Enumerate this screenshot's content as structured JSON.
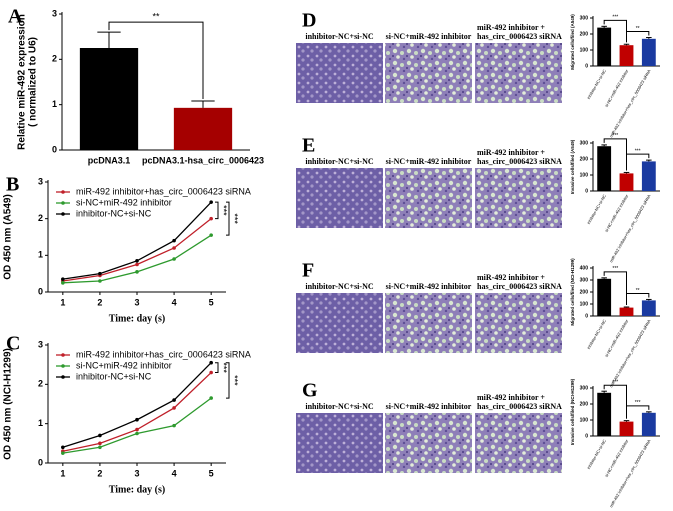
{
  "chart_data": [
    {
      "type": "bar",
      "panel": "A",
      "ylabel": [
        "Relative miR-492 expression",
        "( normalized to U6)"
      ],
      "categories": [
        "pcDNA3.1",
        "pcDNA3.1-hsa_circ_0006423"
      ],
      "values": [
        2.25,
        0.93
      ],
      "errors": [
        0.35,
        0.15
      ],
      "colors": [
        "#000000",
        "#a50000"
      ],
      "ylim": [
        0,
        3
      ],
      "yticks": [
        0,
        1,
        2,
        3
      ],
      "annotations": [
        "**"
      ]
    },
    {
      "type": "line",
      "panel": "B",
      "ylabel": [
        "OD 450 nm (A549)"
      ],
      "xlabel": "Time: day (s)",
      "x": [
        1,
        2,
        3,
        4,
        5
      ],
      "xlim": [
        0.6,
        5.4
      ],
      "xticks": [
        1,
        2,
        3,
        4,
        5
      ],
      "ylim": [
        0,
        3
      ],
      "yticks": [
        0,
        1,
        2,
        3
      ],
      "series": [
        {
          "name": "miR-492 inhibitor+has_circ_0006423 siRNA",
          "color": "#c0202a",
          "values": [
            0.3,
            0.45,
            0.75,
            1.2,
            2.0
          ]
        },
        {
          "name": "si-NC+miR-492 inhibitor",
          "color": "#2e9a2e",
          "values": [
            0.25,
            0.3,
            0.55,
            0.9,
            1.55
          ]
        },
        {
          "name": "inhibitor-NC+si-NC",
          "color": "#000000",
          "values": [
            0.35,
            0.5,
            0.85,
            1.4,
            2.45
          ]
        }
      ],
      "annotations": [
        "***",
        "***"
      ]
    },
    {
      "type": "line",
      "panel": "C",
      "ylabel": [
        "OD 450 nm (NCI-H1299)"
      ],
      "xlabel": "Time: day (s)",
      "x": [
        1,
        2,
        3,
        4,
        5
      ],
      "xlim": [
        0.6,
        5.4
      ],
      "xticks": [
        1,
        2,
        3,
        4,
        5
      ],
      "ylim": [
        0,
        3
      ],
      "yticks": [
        0,
        1,
        2,
        3
      ],
      "series": [
        {
          "name": "miR-492 inhibitor+has_circ_0006423 siRNA",
          "color": "#c0202a",
          "values": [
            0.3,
            0.5,
            0.85,
            1.4,
            2.3
          ]
        },
        {
          "name": "si-NC+miR-492 inhibitor",
          "color": "#2e9a2e",
          "values": [
            0.25,
            0.4,
            0.75,
            0.95,
            1.65
          ]
        },
        {
          "name": "inhibitor-NC+si-NC",
          "color": "#000000",
          "values": [
            0.4,
            0.7,
            1.1,
            1.6,
            2.55
          ]
        }
      ],
      "annotations": [
        "***",
        "***"
      ]
    },
    {
      "type": "bar",
      "panel": "D",
      "image_labels": [
        [
          "inhibitor-NC+si-NC"
        ],
        [
          "si-NC+miR-492 inhibitor"
        ],
        [
          "miR-492 inhibitor +",
          "has_circ_0006423 siRNA"
        ]
      ],
      "ylabel": [
        "Migrated cells/filed (A549)"
      ],
      "categories": [
        "inhibitor-NC+si-NC",
        "si-NC+miR-492 inhibitor",
        "miR-492 inhibitor+has_circ_0006423 siRNA"
      ],
      "values": [
        240,
        130,
        170
      ],
      "errors": [
        8,
        6,
        8
      ],
      "colors": [
        "#000000",
        "#c00000",
        "#1a3aa0"
      ],
      "ylim": [
        0,
        300
      ],
      "yticks": [
        0,
        100,
        200,
        300
      ],
      "annotations": [
        "***",
        "**"
      ]
    },
    {
      "type": "bar",
      "panel": "E",
      "image_labels": [
        [
          "inhibitor-NC+si-NC"
        ],
        [
          "si-NC+miR-492 inhibitor"
        ],
        [
          "miR-492 inhibitor +",
          "has_circ_0006423 siRNA"
        ]
      ],
      "ylabel": [
        "Invasive cells/filed (A549)"
      ],
      "categories": [
        "inhibitor-NC+si-NC",
        "si-NC+miR-492 inhibitor",
        "miR-492 inhibitor+has_circ_0006423 siRNA"
      ],
      "values": [
        280,
        110,
        185
      ],
      "errors": [
        8,
        6,
        8
      ],
      "colors": [
        "#000000",
        "#c00000",
        "#1a3aa0"
      ],
      "ylim": [
        0,
        300
      ],
      "yticks": [
        0,
        100,
        200,
        300
      ],
      "annotations": [
        "***",
        "***"
      ]
    },
    {
      "type": "bar",
      "panel": "F",
      "image_labels": [
        [
          "inhibitor-NC+si-NC"
        ],
        [
          "si-NC+miR-492 inhibitor"
        ],
        [
          "miR-492 inhibitor +",
          "has_circ_0006423 siRNA"
        ]
      ],
      "ylabel": [
        "Migrated cells/filed (NCI-H1299)"
      ],
      "categories": [
        "inhibitor-NC+si-NC",
        "si-NC+miR-492 inhibitor",
        "miR-492 inhibitor+has_circ_0006423 siRNA"
      ],
      "values": [
        310,
        70,
        130
      ],
      "errors": [
        8,
        5,
        8
      ],
      "colors": [
        "#000000",
        "#c00000",
        "#1a3aa0"
      ],
      "ylim": [
        0,
        400
      ],
      "yticks": [
        0,
        100,
        200,
        300,
        400
      ],
      "annotations": [
        "***",
        "**"
      ]
    },
    {
      "type": "bar",
      "panel": "G",
      "image_labels": [
        [
          "inhibitor-NC+si-NC"
        ],
        [
          "si-NC+miR-492 inhibitor"
        ],
        [
          "miR-492 inhibitor +",
          "has_circ_0006423 siRNA"
        ]
      ],
      "ylabel": [
        "Invasive cells/filed (NCI-H1299)"
      ],
      "categories": [
        "inhibitor-NC+si-NC",
        "si-NC+miR-492 inhibitor",
        "miR-492 inhibitor+has_circ_0006423 siRNA"
      ],
      "values": [
        270,
        90,
        145
      ],
      "errors": [
        10,
        6,
        6
      ],
      "colors": [
        "#000000",
        "#c00000",
        "#1a3aa0"
      ],
      "ylim": [
        0,
        300
      ],
      "yticks": [
        0,
        100,
        200,
        300
      ],
      "annotations": [
        "***",
        "***"
      ]
    }
  ]
}
